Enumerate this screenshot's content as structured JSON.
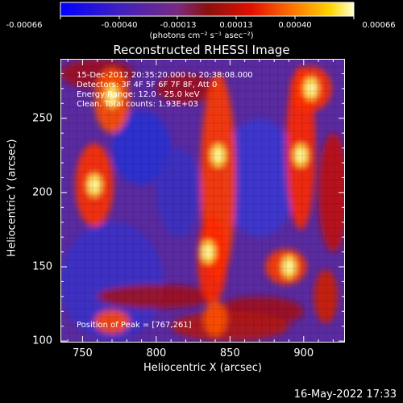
{
  "colorbar": {
    "tick_labels": [
      "-0.00066",
      "-0.00040",
      "-0.00013",
      "0.00013",
      "0.00040",
      "0.00066"
    ],
    "units_label": "(photons cm⁻² s⁻¹ asec⁻²)",
    "range": [
      -0.00066,
      0.00066
    ]
  },
  "title": "Reconstructed RHESSI Image",
  "info": {
    "time": "15-Dec-2012 20:35:20.000 to 20:38:08.000",
    "detectors": "Detectors: 3F 4F 5F 6F 7F 8F, Att 0",
    "energy": "Energy Range: 12.0 - 25.0 keV",
    "clean": "Clean.  Total counts: 1.93E+03",
    "peak": "Position of Peak = [767,261]"
  },
  "chart_data": {
    "type": "heatmap",
    "title": "Reconstructed RHESSI Image",
    "xlabel": "Heliocentric X (arcsec)",
    "ylabel": "Heliocentric Y (arcsec)",
    "xlim": [
      735,
      928
    ],
    "ylim": [
      99,
      290
    ],
    "x_ticks": [
      "750",
      "800",
      "850",
      "900"
    ],
    "y_ticks": [
      "100",
      "150",
      "200",
      "250"
    ],
    "colormap": "hot-blue",
    "peak_position": [
      767,
      261
    ],
    "bright_sources": [
      {
        "x": 758,
        "y": 205
      },
      {
        "x": 770,
        "y": 265
      },
      {
        "x": 842,
        "y": 225
      },
      {
        "x": 835,
        "y": 160
      },
      {
        "x": 898,
        "y": 225
      },
      {
        "x": 905,
        "y": 270
      },
      {
        "x": 890,
        "y": 150
      }
    ]
  },
  "footer": "16-May-2022 17:33"
}
